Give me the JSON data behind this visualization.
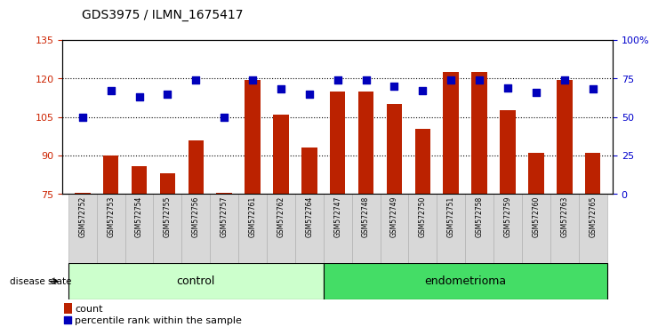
{
  "title": "GDS3975 / ILMN_1675417",
  "samples": [
    "GSM572752",
    "GSM572753",
    "GSM572754",
    "GSM572755",
    "GSM572756",
    "GSM572757",
    "GSM572761",
    "GSM572762",
    "GSM572764",
    "GSM572747",
    "GSM572748",
    "GSM572749",
    "GSM572750",
    "GSM572751",
    "GSM572758",
    "GSM572759",
    "GSM572760",
    "GSM572763",
    "GSM572765"
  ],
  "counts": [
    75.5,
    90.0,
    86.0,
    83.0,
    96.0,
    75.5,
    119.5,
    106.0,
    93.0,
    115.0,
    115.0,
    110.0,
    100.5,
    122.5,
    122.5,
    107.5,
    91.0,
    119.5,
    91.0
  ],
  "percentiles": [
    50,
    67,
    63,
    65,
    74,
    50,
    74,
    68,
    65,
    74,
    74,
    70,
    67,
    74,
    74,
    69,
    66,
    74,
    68
  ],
  "groups": [
    "control",
    "control",
    "control",
    "control",
    "control",
    "control",
    "control",
    "control",
    "control",
    "endometrioma",
    "endometrioma",
    "endometrioma",
    "endometrioma",
    "endometrioma",
    "endometrioma",
    "endometrioma",
    "endometrioma",
    "endometrioma",
    "endometrioma"
  ],
  "ylim_left": [
    75,
    135
  ],
  "ylim_right": [
    0,
    100
  ],
  "yticks_left": [
    75,
    90,
    105,
    120,
    135
  ],
  "yticks_right": [
    0,
    25,
    50,
    75,
    100
  ],
  "ytick_labels_right": [
    "0",
    "25",
    "50",
    "75",
    "100%"
  ],
  "bar_color": "#bb2200",
  "dot_color": "#0000bb",
  "bar_bottom": 75,
  "control_color": "#ccffcc",
  "endo_color": "#44dd66",
  "legend_count": "count",
  "legend_pct": "percentile rank within the sample",
  "tick_label_color_left": "#cc2200",
  "tick_label_color_right": "#0000cc",
  "n_control": 9,
  "n_endo": 10
}
